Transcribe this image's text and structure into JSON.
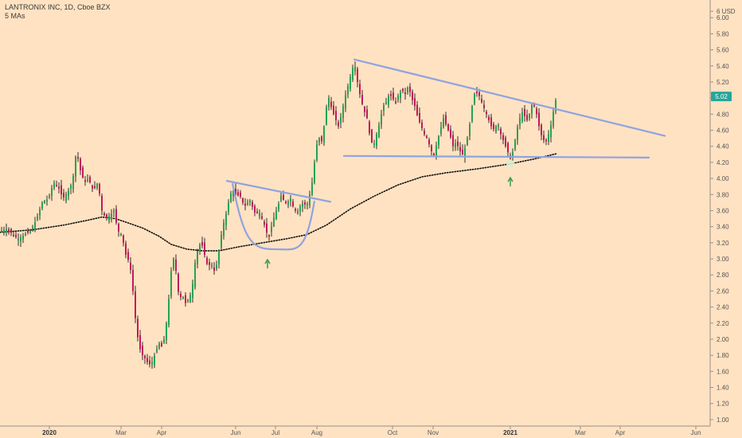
{
  "header": {
    "title": "LANTRONIX INC, 1D, Cboe BZX",
    "indicator": "5 MAs"
  },
  "chart_data": {
    "type": "candlestick",
    "symbol": "LANTRONIX INC",
    "interval": "1D",
    "exchange": "Cboe BZX",
    "currency": "USD",
    "last_price": "5.02",
    "y_axis": {
      "ticks": [
        "6 USD",
        "6.00",
        "5.80",
        "5.60",
        "5.40",
        "5.20",
        "5.00",
        "4.80",
        "4.60",
        "4.40",
        "4.20",
        "4.00",
        "3.80",
        "3.60",
        "3.40",
        "3.20",
        "3.00",
        "2.80",
        "2.60",
        "2.40",
        "2.20",
        "2.00",
        "1.80",
        "1.60",
        "1.40",
        "1.20",
        "1.00"
      ],
      "range": [
        0.92,
        6.22
      ]
    },
    "x_axis": {
      "ticks": [
        {
          "label": "2020",
          "bold": true
        },
        {
          "label": "Mar",
          "bold": false
        },
        {
          "label": "Apr",
          "bold": false
        },
        {
          "label": "Jun",
          "bold": false
        },
        {
          "label": "Jul",
          "bold": false
        },
        {
          "label": "Aug",
          "bold": false
        },
        {
          "label": "Oct",
          "bold": false
        },
        {
          "label": "Nov",
          "bold": false
        },
        {
          "label": "2021",
          "bold": true
        },
        {
          "label": "Mar",
          "bold": false
        },
        {
          "label": "Apr",
          "bold": false
        },
        {
          "label": "Jun",
          "bold": false
        }
      ]
    },
    "price_path": [
      [
        0,
        3.35
      ],
      [
        8,
        3.38
      ],
      [
        15,
        3.3
      ],
      [
        22,
        3.25
      ],
      [
        30,
        3.3
      ],
      [
        38,
        3.35
      ],
      [
        45,
        3.5
      ],
      [
        52,
        3.7
      ],
      [
        60,
        3.75
      ],
      [
        66,
        3.95
      ],
      [
        72,
        3.9
      ],
      [
        78,
        3.75
      ],
      [
        85,
        3.85
      ],
      [
        90,
        3.95
      ],
      [
        95,
        4.35
      ],
      [
        100,
        4.1
      ],
      [
        105,
        3.95
      ],
      [
        110,
        4.0
      ],
      [
        116,
        3.85
      ],
      [
        122,
        3.95
      ],
      [
        127,
        3.6
      ],
      [
        132,
        3.5
      ],
      [
        138,
        3.55
      ],
      [
        142,
        3.6
      ],
      [
        147,
        3.35
      ],
      [
        152,
        3.3
      ],
      [
        157,
        3.05
      ],
      [
        162,
        2.95
      ],
      [
        166,
        2.6
      ],
      [
        170,
        2.15
      ],
      [
        174,
        1.9
      ],
      [
        178,
        1.8
      ],
      [
        182,
        1.75
      ],
      [
        186,
        1.68
      ],
      [
        190,
        1.72
      ],
      [
        195,
        1.85
      ],
      [
        199,
        1.95
      ],
      [
        203,
        1.9
      ],
      [
        207,
        2.1
      ],
      [
        211,
        2.5
      ],
      [
        214,
        2.85
      ],
      [
        217,
        3.0
      ],
      [
        220,
        2.85
      ],
      [
        224,
        2.5
      ],
      [
        228,
        2.55
      ],
      [
        232,
        2.45
      ],
      [
        236,
        2.5
      ],
      [
        240,
        2.6
      ],
      [
        244,
        2.95
      ],
      [
        248,
        3.15
      ],
      [
        252,
        3.2
      ],
      [
        256,
        3.05
      ],
      [
        260,
        2.9
      ],
      [
        264,
        2.95
      ],
      [
        268,
        2.85
      ],
      [
        272,
        2.95
      ],
      [
        276,
        3.25
      ],
      [
        280,
        3.45
      ],
      [
        284,
        3.6
      ],
      [
        288,
        3.8
      ],
      [
        292,
        3.85
      ],
      [
        296,
        3.78
      ],
      [
        300,
        3.8
      ],
      [
        304,
        3.7
      ],
      [
        308,
        3.65
      ],
      [
        312,
        3.75
      ],
      [
        316,
        3.65
      ],
      [
        320,
        3.55
      ],
      [
        324,
        3.6
      ],
      [
        328,
        3.5
      ],
      [
        332,
        3.4
      ],
      [
        336,
        3.25
      ],
      [
        340,
        3.4
      ],
      [
        344,
        3.55
      ],
      [
        348,
        3.65
      ],
      [
        352,
        3.78
      ],
      [
        356,
        3.72
      ],
      [
        360,
        3.7
      ],
      [
        364,
        3.75
      ],
      [
        368,
        3.62
      ],
      [
        372,
        3.58
      ],
      [
        376,
        3.65
      ],
      [
        380,
        3.7
      ],
      [
        384,
        3.65
      ],
      [
        388,
        3.8
      ],
      [
        392,
        4.0
      ],
      [
        396,
        4.4
      ],
      [
        400,
        4.5
      ],
      [
        404,
        4.45
      ],
      [
        408,
        4.85
      ],
      [
        412,
        5.0
      ],
      [
        416,
        4.85
      ],
      [
        420,
        4.75
      ],
      [
        424,
        4.65
      ],
      [
        428,
        4.8
      ],
      [
        432,
        5.0
      ],
      [
        436,
        5.15
      ],
      [
        440,
        5.3
      ],
      [
        444,
        5.45
      ],
      [
        448,
        5.2
      ],
      [
        452,
        5.0
      ],
      [
        456,
        4.85
      ],
      [
        460,
        4.75
      ],
      [
        464,
        4.5
      ],
      [
        468,
        4.4
      ],
      [
        472,
        4.55
      ],
      [
        476,
        4.7
      ],
      [
        480,
        4.9
      ],
      [
        484,
        4.95
      ],
      [
        488,
        5.05
      ],
      [
        492,
        5.0
      ],
      [
        496,
        4.95
      ],
      [
        500,
        5.05
      ],
      [
        504,
        5.1
      ],
      [
        508,
        5.05
      ],
      [
        512,
        5.15
      ],
      [
        516,
        5.0
      ],
      [
        520,
        4.9
      ],
      [
        524,
        4.75
      ],
      [
        528,
        4.65
      ],
      [
        532,
        4.55
      ],
      [
        536,
        4.5
      ],
      [
        540,
        4.35
      ],
      [
        544,
        4.3
      ],
      [
        548,
        4.45
      ],
      [
        552,
        4.6
      ],
      [
        556,
        4.75
      ],
      [
        560,
        4.65
      ],
      [
        564,
        4.55
      ],
      [
        568,
        4.4
      ],
      [
        572,
        4.45
      ],
      [
        576,
        4.35
      ],
      [
        580,
        4.3
      ],
      [
        584,
        4.4
      ],
      [
        588,
        4.6
      ],
      [
        592,
        4.9
      ],
      [
        596,
        5.1
      ],
      [
        600,
        5.05
      ],
      [
        604,
        4.95
      ],
      [
        608,
        4.85
      ],
      [
        612,
        4.75
      ],
      [
        616,
        4.65
      ],
      [
        620,
        4.6
      ],
      [
        624,
        4.7
      ],
      [
        628,
        4.55
      ],
      [
        632,
        4.45
      ],
      [
        636,
        4.35
      ],
      [
        640,
        4.25
      ],
      [
        644,
        4.35
      ],
      [
        648,
        4.6
      ],
      [
        652,
        4.75
      ],
      [
        656,
        4.85
      ],
      [
        660,
        4.7
      ],
      [
        664,
        4.8
      ],
      [
        668,
        4.95
      ],
      [
        672,
        4.85
      ],
      [
        676,
        4.65
      ],
      [
        680,
        4.5
      ],
      [
        684,
        4.45
      ],
      [
        688,
        4.55
      ],
      [
        692,
        4.7
      ],
      [
        696,
        4.95
      ],
      [
        699,
        5.02
      ]
    ],
    "moving_average": [
      [
        0,
        3.33
      ],
      [
        40,
        3.36
      ],
      [
        80,
        3.42
      ],
      [
        110,
        3.48
      ],
      [
        128,
        3.52
      ],
      [
        145,
        3.5
      ],
      [
        160,
        3.45
      ],
      [
        180,
        3.38
      ],
      [
        200,
        3.28
      ],
      [
        215,
        3.18
      ],
      [
        235,
        3.12
      ],
      [
        255,
        3.1
      ],
      [
        275,
        3.1
      ],
      [
        300,
        3.15
      ],
      [
        330,
        3.2
      ],
      [
        360,
        3.25
      ],
      [
        385,
        3.3
      ],
      [
        410,
        3.42
      ],
      [
        440,
        3.62
      ],
      [
        470,
        3.78
      ],
      [
        500,
        3.92
      ],
      [
        530,
        4.02
      ],
      [
        560,
        4.07
      ],
      [
        600,
        4.12
      ],
      [
        640,
        4.18
      ],
      [
        670,
        4.24
      ],
      [
        700,
        4.31
      ]
    ],
    "annotations": {
      "cup_rim_line": [
        [
          285,
          3.97
        ],
        [
          415,
          3.71
        ]
      ],
      "cup_curve": {
        "left": [
          292,
          3.94
        ],
        "bottom": [
          343,
          3.12
        ],
        "right": [
          395,
          3.72
        ]
      },
      "triangle_upper_line": [
        [
          445,
          5.48
        ],
        [
          835,
          4.53
        ]
      ],
      "triangle_lower_line": [
        [
          432,
          4.28
        ],
        [
          815,
          4.26
        ]
      ],
      "arrows_up": [
        [
          336,
          2.98
        ],
        [
          641,
          4.0
        ]
      ],
      "highlight_point": [
        641,
        4.18
      ]
    },
    "grid": false,
    "legend": "none"
  }
}
